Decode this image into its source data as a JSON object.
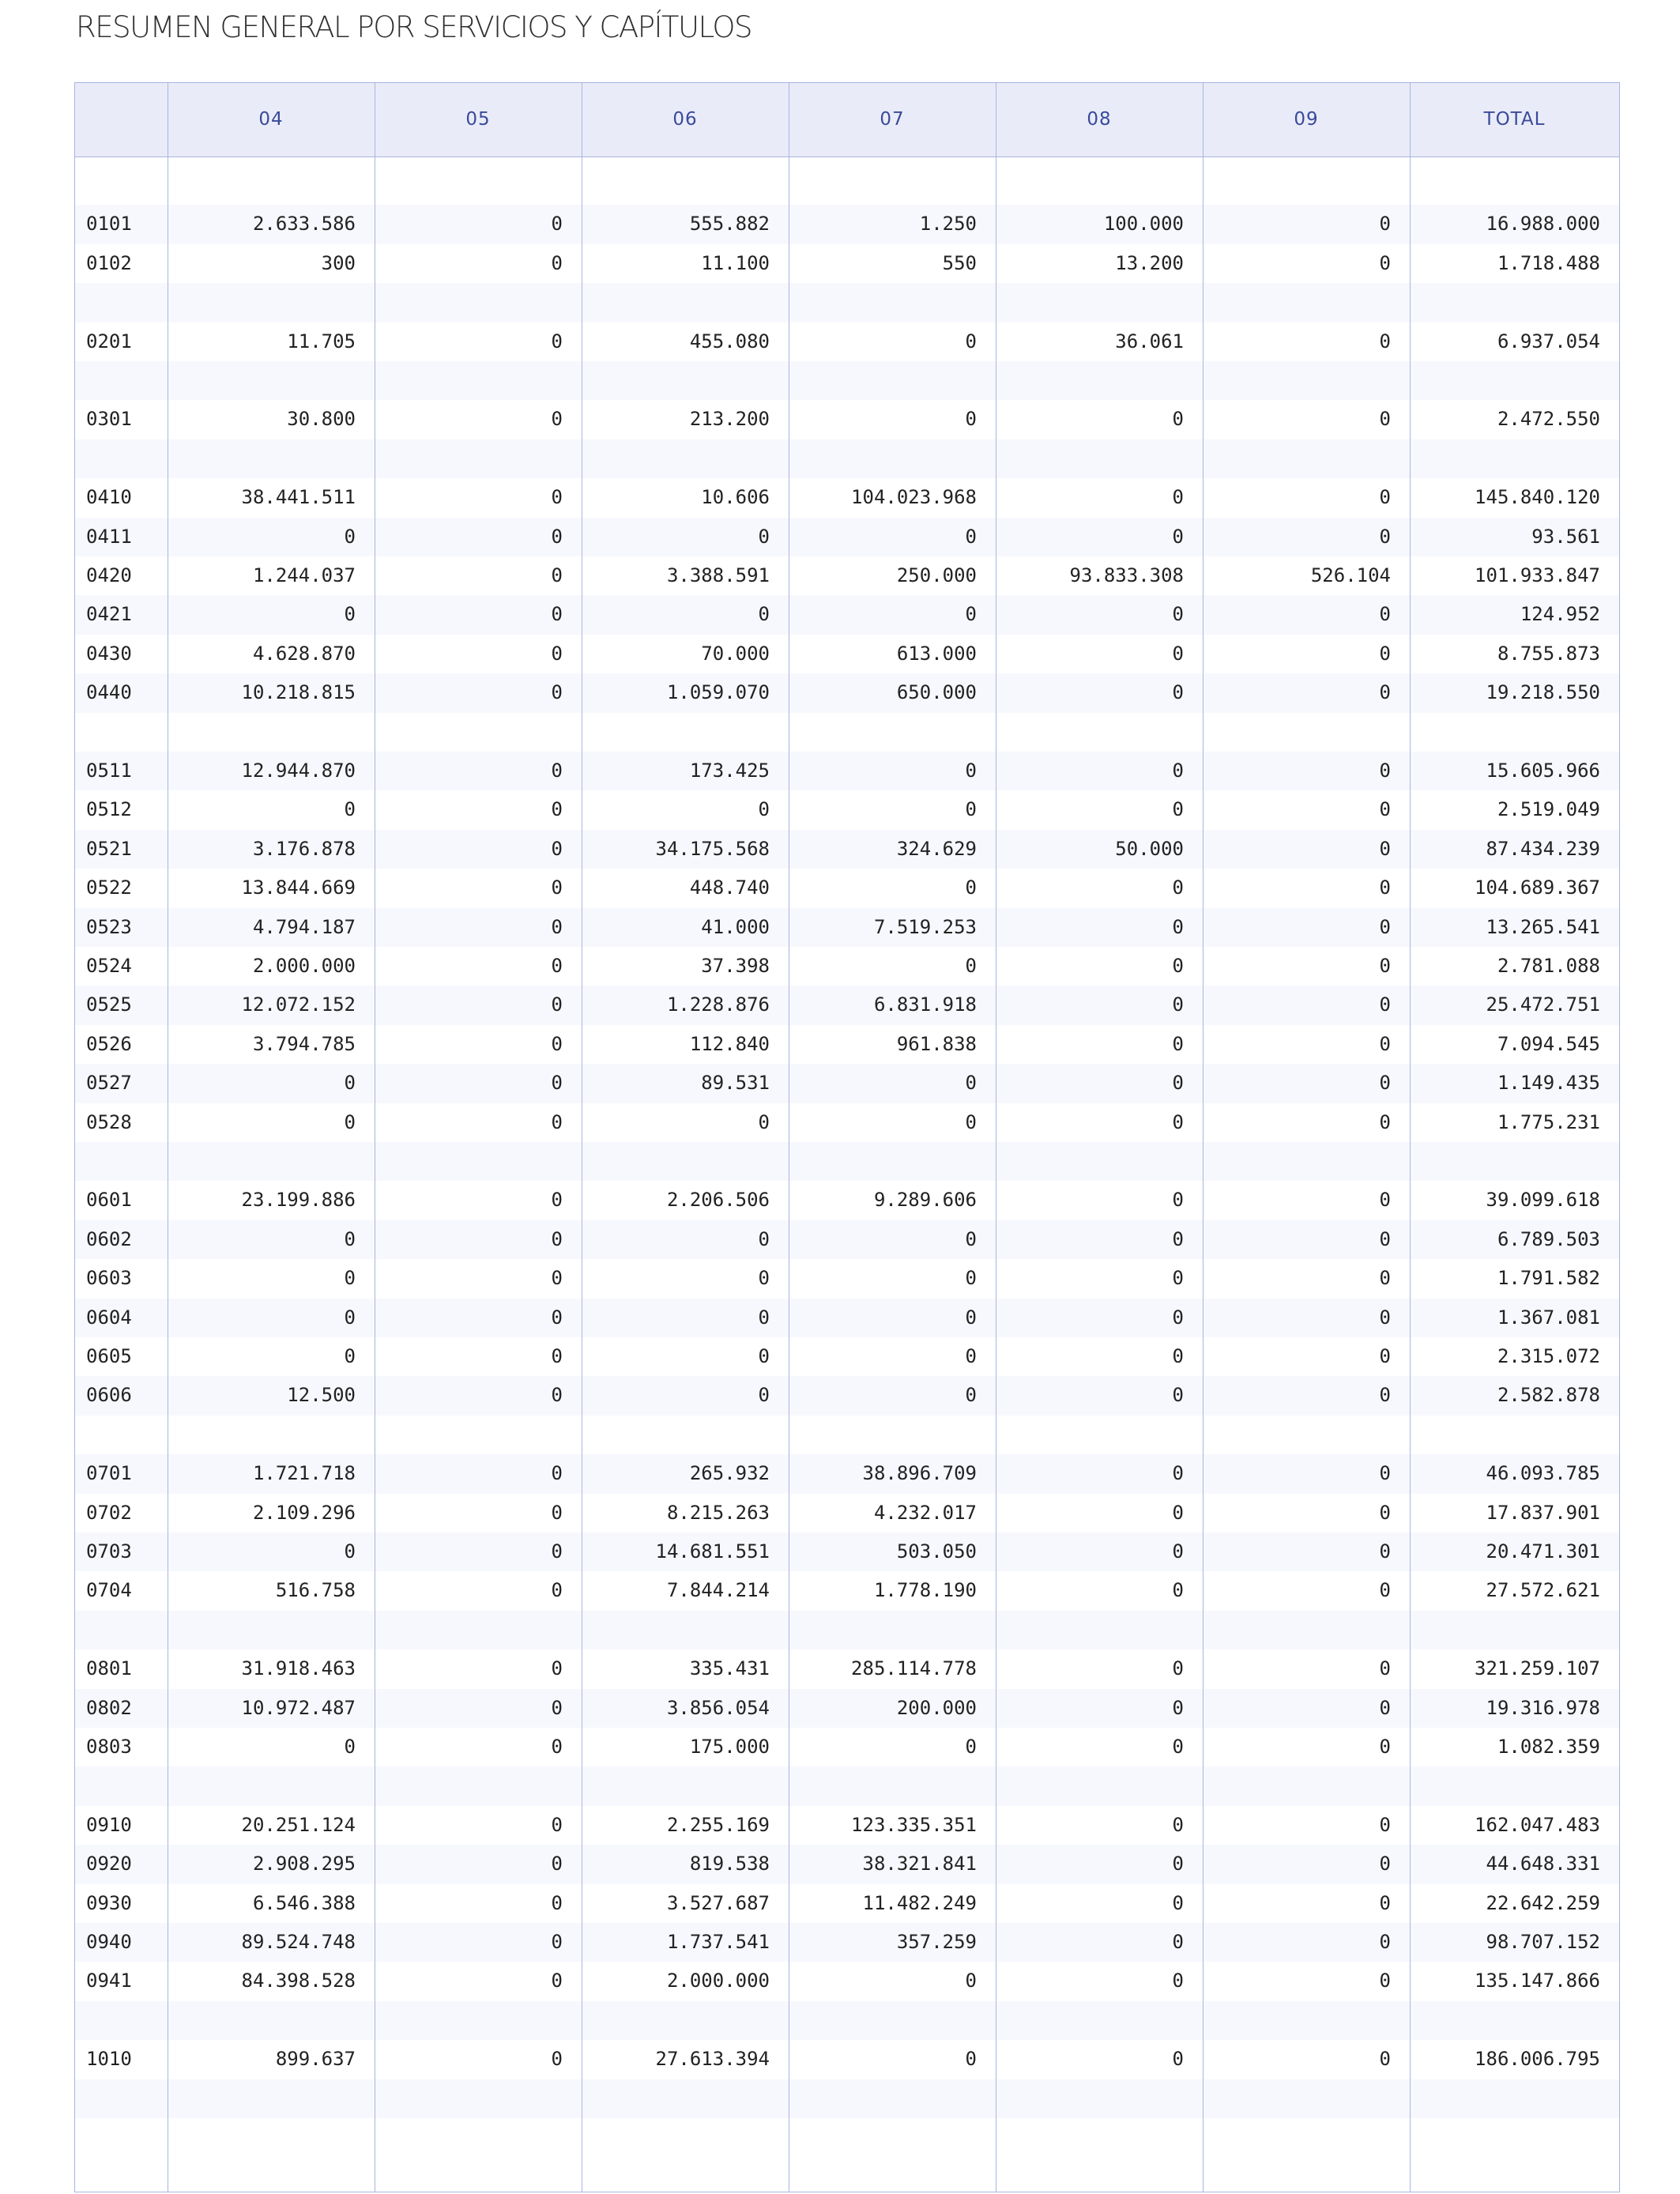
{
  "title": "RESUMEN GENERAL POR SERVICIOS Y CAPÍTULOS",
  "columns": [
    "",
    "04",
    "05",
    "06",
    "07",
    "08",
    "09",
    "TOTAL"
  ],
  "rows": [
    {
      "code": "",
      "values": []
    },
    {
      "code": "0101",
      "values": [
        "2.633.586",
        "0",
        "555.882",
        "1.250",
        "100.000",
        "0",
        "16.988.000"
      ]
    },
    {
      "code": "0102",
      "values": [
        "300",
        "0",
        "11.100",
        "550",
        "13.200",
        "0",
        "1.718.488"
      ]
    },
    {
      "code": "",
      "values": []
    },
    {
      "code": "0201",
      "values": [
        "11.705",
        "0",
        "455.080",
        "0",
        "36.061",
        "0",
        "6.937.054"
      ]
    },
    {
      "code": "",
      "values": []
    },
    {
      "code": "0301",
      "values": [
        "30.800",
        "0",
        "213.200",
        "0",
        "0",
        "0",
        "2.472.550"
      ]
    },
    {
      "code": "",
      "values": []
    },
    {
      "code": "0410",
      "values": [
        "38.441.511",
        "0",
        "10.606",
        "104.023.968",
        "0",
        "0",
        "145.840.120"
      ]
    },
    {
      "code": "0411",
      "values": [
        "0",
        "0",
        "0",
        "0",
        "0",
        "0",
        "93.561"
      ]
    },
    {
      "code": "0420",
      "values": [
        "1.244.037",
        "0",
        "3.388.591",
        "250.000",
        "93.833.308",
        "526.104",
        "101.933.847"
      ]
    },
    {
      "code": "0421",
      "values": [
        "0",
        "0",
        "0",
        "0",
        "0",
        "0",
        "124.952"
      ]
    },
    {
      "code": "0430",
      "values": [
        "4.628.870",
        "0",
        "70.000",
        "613.000",
        "0",
        "0",
        "8.755.873"
      ]
    },
    {
      "code": "0440",
      "values": [
        "10.218.815",
        "0",
        "1.059.070",
        "650.000",
        "0",
        "0",
        "19.218.550"
      ]
    },
    {
      "code": "",
      "values": []
    },
    {
      "code": "0511",
      "values": [
        "12.944.870",
        "0",
        "173.425",
        "0",
        "0",
        "0",
        "15.605.966"
      ]
    },
    {
      "code": "0512",
      "values": [
        "0",
        "0",
        "0",
        "0",
        "0",
        "0",
        "2.519.049"
      ]
    },
    {
      "code": "0521",
      "values": [
        "3.176.878",
        "0",
        "34.175.568",
        "324.629",
        "50.000",
        "0",
        "87.434.239"
      ]
    },
    {
      "code": "0522",
      "values": [
        "13.844.669",
        "0",
        "448.740",
        "0",
        "0",
        "0",
        "104.689.367"
      ]
    },
    {
      "code": "0523",
      "values": [
        "4.794.187",
        "0",
        "41.000",
        "7.519.253",
        "0",
        "0",
        "13.265.541"
      ]
    },
    {
      "code": "0524",
      "values": [
        "2.000.000",
        "0",
        "37.398",
        "0",
        "0",
        "0",
        "2.781.088"
      ]
    },
    {
      "code": "0525",
      "values": [
        "12.072.152",
        "0",
        "1.228.876",
        "6.831.918",
        "0",
        "0",
        "25.472.751"
      ]
    },
    {
      "code": "0526",
      "values": [
        "3.794.785",
        "0",
        "112.840",
        "961.838",
        "0",
        "0",
        "7.094.545"
      ]
    },
    {
      "code": "0527",
      "values": [
        "0",
        "0",
        "89.531",
        "0",
        "0",
        "0",
        "1.149.435"
      ]
    },
    {
      "code": "0528",
      "values": [
        "0",
        "0",
        "0",
        "0",
        "0",
        "0",
        "1.775.231"
      ]
    },
    {
      "code": "",
      "values": []
    },
    {
      "code": "0601",
      "values": [
        "23.199.886",
        "0",
        "2.206.506",
        "9.289.606",
        "0",
        "0",
        "39.099.618"
      ]
    },
    {
      "code": "0602",
      "values": [
        "0",
        "0",
        "0",
        "0",
        "0",
        "0",
        "6.789.503"
      ]
    },
    {
      "code": "0603",
      "values": [
        "0",
        "0",
        "0",
        "0",
        "0",
        "0",
        "1.791.582"
      ]
    },
    {
      "code": "0604",
      "values": [
        "0",
        "0",
        "0",
        "0",
        "0",
        "0",
        "1.367.081"
      ]
    },
    {
      "code": "0605",
      "values": [
        "0",
        "0",
        "0",
        "0",
        "0",
        "0",
        "2.315.072"
      ]
    },
    {
      "code": "0606",
      "values": [
        "12.500",
        "0",
        "0",
        "0",
        "0",
        "0",
        "2.582.878"
      ]
    },
    {
      "code": "",
      "values": []
    },
    {
      "code": "0701",
      "values": [
        "1.721.718",
        "0",
        "265.932",
        "38.896.709",
        "0",
        "0",
        "46.093.785"
      ]
    },
    {
      "code": "0702",
      "values": [
        "2.109.296",
        "0",
        "8.215.263",
        "4.232.017",
        "0",
        "0",
        "17.837.901"
      ]
    },
    {
      "code": "0703",
      "values": [
        "0",
        "0",
        "14.681.551",
        "503.050",
        "0",
        "0",
        "20.471.301"
      ]
    },
    {
      "code": "0704",
      "values": [
        "516.758",
        "0",
        "7.844.214",
        "1.778.190",
        "0",
        "0",
        "27.572.621"
      ]
    },
    {
      "code": "",
      "values": []
    },
    {
      "code": "0801",
      "values": [
        "31.918.463",
        "0",
        "335.431",
        "285.114.778",
        "0",
        "0",
        "321.259.107"
      ]
    },
    {
      "code": "0802",
      "values": [
        "10.972.487",
        "0",
        "3.856.054",
        "200.000",
        "0",
        "0",
        "19.316.978"
      ]
    },
    {
      "code": "0803",
      "values": [
        "0",
        "0",
        "175.000",
        "0",
        "0",
        "0",
        "1.082.359"
      ]
    },
    {
      "code": "",
      "values": []
    },
    {
      "code": "0910",
      "values": [
        "20.251.124",
        "0",
        "2.255.169",
        "123.335.351",
        "0",
        "0",
        "162.047.483"
      ]
    },
    {
      "code": "0920",
      "values": [
        "2.908.295",
        "0",
        "819.538",
        "38.321.841",
        "0",
        "0",
        "44.648.331"
      ]
    },
    {
      "code": "0930",
      "values": [
        "6.546.388",
        "0",
        "3.527.687",
        "11.482.249",
        "0",
        "0",
        "22.642.259"
      ]
    },
    {
      "code": "0940",
      "values": [
        "89.524.748",
        "0",
        "1.737.541",
        "357.259",
        "0",
        "0",
        "98.707.152"
      ]
    },
    {
      "code": "0941",
      "values": [
        "84.398.528",
        "0",
        "2.000.000",
        "0",
        "0",
        "0",
        "135.147.866"
      ]
    },
    {
      "code": "",
      "values": []
    },
    {
      "code": "1010",
      "values": [
        "899.637",
        "0",
        "27.613.394",
        "0",
        "0",
        "0",
        "186.006.795"
      ]
    },
    {
      "code": "",
      "values": []
    }
  ]
}
